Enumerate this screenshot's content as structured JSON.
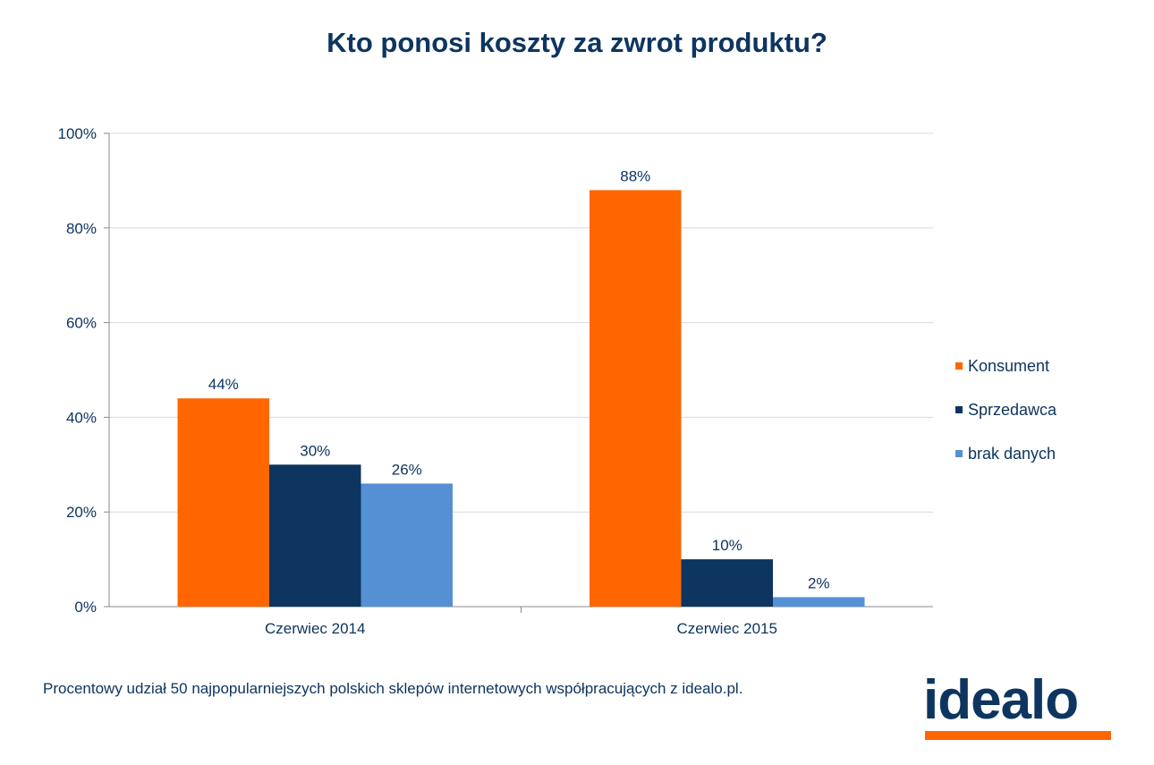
{
  "title": "Kto ponosi koszty za zwrot produktu?",
  "colors": {
    "text": "#0d3560",
    "konsument": "#ff6600",
    "sprzedawca": "#0d3560",
    "brak_danych": "#5590d4",
    "grid": "#d9d9d9",
    "axis": "#888888"
  },
  "chart_data": {
    "type": "bar",
    "title": "Kto ponosi koszty za zwrot produktu?",
    "categories": [
      "Czerwiec 2014",
      "Czerwiec 2015"
    ],
    "series": [
      {
        "name": "Konsument",
        "values": [
          44,
          88
        ],
        "labels": [
          "44%",
          "88%"
        ],
        "color": "#ff6600"
      },
      {
        "name": "Sprzedawca",
        "values": [
          30,
          10
        ],
        "labels": [
          "30%",
          "10%"
        ],
        "color": "#0d3560"
      },
      {
        "name": "brak danych",
        "values": [
          26,
          2
        ],
        "labels": [
          "26%",
          "2%"
        ],
        "color": "#5590d4"
      }
    ],
    "ylim": [
      0,
      100
    ],
    "yticks": [
      0,
      20,
      40,
      60,
      80,
      100
    ],
    "ytick_labels": [
      "0%",
      "20%",
      "40%",
      "60%",
      "80%",
      "100%"
    ],
    "grid": true,
    "legend_position": "right"
  },
  "footnote": "Procentowy udział 50 najpopularniejszych polskich sklepów internetowych współpracujących z idealo.pl.",
  "logo": {
    "text": "idealo",
    "bar_color": "#ff6600"
  }
}
